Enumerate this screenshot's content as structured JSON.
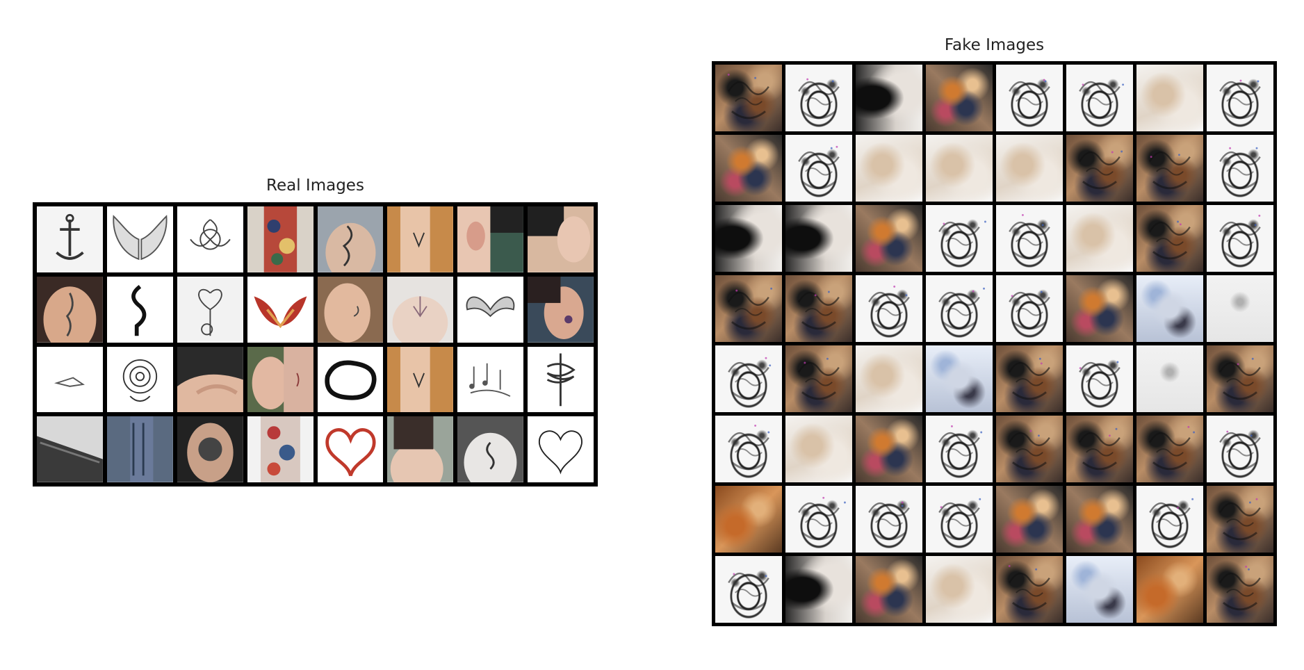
{
  "real_panel": {
    "title": "Real Images",
    "rows": 4,
    "cols": 8,
    "tiles": [
      "anchor-tattoo",
      "wings-tattoo",
      "floral-sketch-tattoo",
      "colorful-body-tattoo",
      "back-dragon-tattoo",
      "forearm-tattoo",
      "ear-tattoo",
      "neck-tattoo",
      "back-spine-tattoo",
      "tribal-rose-tattoo",
      "heart-balloon-tattoo",
      "red-tribal-tattoo",
      "behind-ear-tattoo",
      "upper-back-tattoo",
      "winged-heart-tattoo",
      "neck-side-tattoo",
      "small-bird-tattoo",
      "mandala-tattoo",
      "arm-tattoo",
      "neck-nape-tattoo",
      "tribal-circle-tattoo",
      "forearm-tattoo-2",
      "music-notes-tattoo",
      "snake-dagger-tattoo",
      "sleeve-tattoo",
      "full-sleeve-tattoo",
      "thigh-tattoo",
      "colorful-sleeve-tattoo",
      "red-heart-tattoo",
      "shoulder-tattoo",
      "back-script-tattoo",
      "heart-outline-tattoo"
    ]
  },
  "fake_panel": {
    "title": "Fake Images",
    "rows": 8,
    "cols": 8,
    "textures": [
      "a",
      "b",
      "c",
      "d",
      "b",
      "b",
      "e",
      "b",
      "d",
      "b",
      "e",
      "e",
      "e",
      "a",
      "a",
      "b",
      "c",
      "c",
      "d",
      "b",
      "b",
      "e",
      "a",
      "b",
      "a",
      "a",
      "b",
      "b",
      "b",
      "d",
      "g",
      "h",
      "b",
      "a",
      "e",
      "g",
      "a",
      "b",
      "h",
      "a",
      "b",
      "e",
      "d",
      "b",
      "a",
      "a",
      "a",
      "b",
      "f",
      "b",
      "b",
      "b",
      "d",
      "d",
      "b",
      "a",
      "b",
      "c",
      "d",
      "e",
      "a",
      "g",
      "f",
      "a"
    ]
  }
}
